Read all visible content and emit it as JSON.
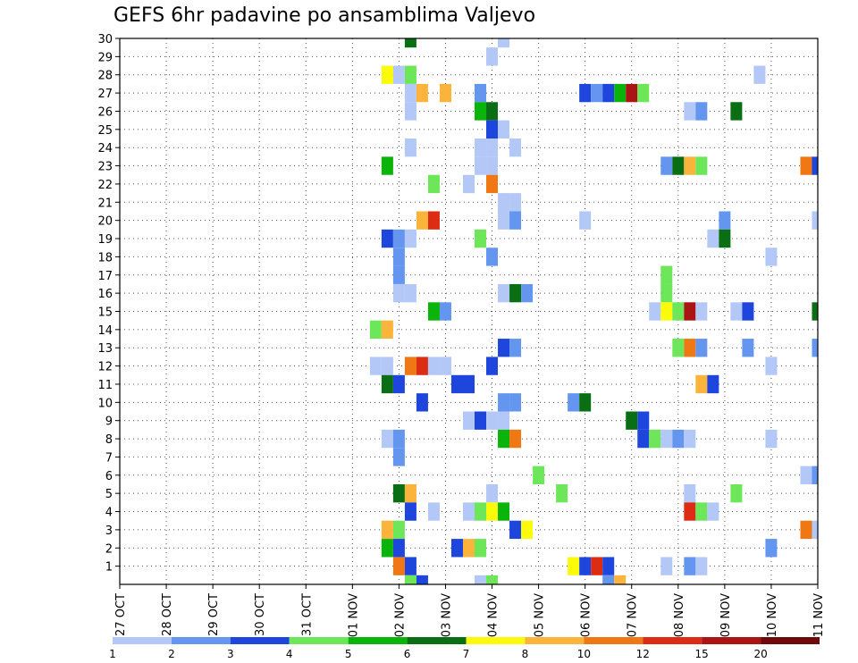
{
  "chart_data": {
    "type": "heatmap",
    "title": "GEFS 6hr padavine po ansamblima Valjevo",
    "x_tick_labels": [
      "27 OCT",
      "28 OCT",
      "29 OCT",
      "30 OCT",
      "31 OCT",
      "01 NOV",
      "02 NOV",
      "03 NOV",
      "04 NOV",
      "05 NOV",
      "06 NOV",
      "07 NOV",
      "08 NOV",
      "09 NOV",
      "10 NOV",
      "11 NOV"
    ],
    "y_tick_labels": [
      "1",
      "2",
      "3",
      "4",
      "5",
      "6",
      "7",
      "8",
      "9",
      "10",
      "11",
      "12",
      "13",
      "14",
      "15",
      "16",
      "17",
      "18",
      "19",
      "20",
      "21",
      "22",
      "23",
      "24",
      "25",
      "26",
      "27",
      "28",
      "29",
      "30"
    ],
    "ylim": [
      0,
      30
    ],
    "grid": true,
    "legend_position": "bottom",
    "legend_labels": [
      "1",
      "2",
      "3",
      "4",
      "5",
      "6",
      "7",
      "8",
      "10",
      "12",
      "15",
      "20"
    ],
    "legend_colors": [
      "#b4c8f8",
      "#6496f0",
      "#1e46dc",
      "#6ee65a",
      "#0ab40a",
      "#0a6e14",
      "#fafa0a",
      "#fab43c",
      "#f07814",
      "#dc2d14",
      "#aa1414",
      "#6e0a0a"
    ],
    "cells": [
      {
        "x": "02 NOV 06",
        "member": 30,
        "color": "#0a6e14"
      },
      {
        "x": "04 NOV 06",
        "member": 30,
        "color": "#b4c8f8"
      },
      {
        "x": "04 NOV 00",
        "member": 29,
        "color": "#b4c8f8"
      },
      {
        "x": "01 NOV 18",
        "member": 28,
        "color": "#fafa0a"
      },
      {
        "x": "02 NOV 00",
        "member": 28,
        "color": "#b4c8f8"
      },
      {
        "x": "02 NOV 06",
        "member": 28,
        "color": "#6ee65a"
      },
      {
        "x": "09 NOV 18",
        "member": 28,
        "color": "#b4c8f8"
      },
      {
        "x": "02 NOV 06",
        "member": 27,
        "color": "#b4c8f8"
      },
      {
        "x": "02 NOV 12",
        "member": 27,
        "color": "#fab43c"
      },
      {
        "x": "03 NOV 00",
        "member": 27,
        "color": "#fab43c"
      },
      {
        "x": "03 NOV 18",
        "member": 27,
        "color": "#6496f0"
      },
      {
        "x": "06 NOV 00",
        "member": 27,
        "color": "#1e46dc"
      },
      {
        "x": "06 NOV 06",
        "member": 27,
        "color": "#6496f0"
      },
      {
        "x": "06 NOV 12",
        "member": 27,
        "color": "#1e46dc"
      },
      {
        "x": "06 NOV 18",
        "member": 27,
        "color": "#0ab40a"
      },
      {
        "x": "07 NOV 00",
        "member": 27,
        "color": "#aa1414"
      },
      {
        "x": "07 NOV 06",
        "member": 27,
        "color": "#6ee65a"
      },
      {
        "x": "02 NOV 06",
        "member": 26,
        "color": "#b4c8f8"
      },
      {
        "x": "03 NOV 18",
        "member": 26,
        "color": "#0ab40a"
      },
      {
        "x": "04 NOV 00",
        "member": 26,
        "color": "#0a6e14"
      },
      {
        "x": "08 NOV 06",
        "member": 26,
        "color": "#b4c8f8"
      },
      {
        "x": "08 NOV 12",
        "member": 26,
        "color": "#6496f0"
      },
      {
        "x": "09 NOV 06",
        "member": 26,
        "color": "#0a6e14"
      },
      {
        "x": "04 NOV 00",
        "member": 25,
        "color": "#1e46dc"
      },
      {
        "x": "04 NOV 06",
        "member": 25,
        "color": "#b4c8f8"
      },
      {
        "x": "02 NOV 06",
        "member": 24,
        "color": "#b4c8f8"
      },
      {
        "x": "03 NOV 18",
        "member": 24,
        "color": "#b4c8f8"
      },
      {
        "x": "04 NOV 00",
        "member": 24,
        "color": "#b4c8f8"
      },
      {
        "x": "04 NOV 12",
        "member": 24,
        "color": "#b4c8f8"
      },
      {
        "x": "01 NOV 18",
        "member": 23,
        "color": "#0ab40a"
      },
      {
        "x": "03 NOV 18",
        "member": 23,
        "color": "#b4c8f8"
      },
      {
        "x": "04 NOV 00",
        "member": 23,
        "color": "#b4c8f8"
      },
      {
        "x": "07 NOV 18",
        "member": 23,
        "color": "#6496f0"
      },
      {
        "x": "08 NOV 00",
        "member": 23,
        "color": "#0a6e14"
      },
      {
        "x": "08 NOV 06",
        "member": 23,
        "color": "#fab43c"
      },
      {
        "x": "08 NOV 12",
        "member": 23,
        "color": "#6ee65a"
      },
      {
        "x": "10 NOV 18",
        "member": 23,
        "color": "#f07814"
      },
      {
        "x": "11 NOV 00",
        "member": 23,
        "color": "#1e46dc"
      },
      {
        "x": "02 NOV 18",
        "member": 22,
        "color": "#6ee65a"
      },
      {
        "x": "03 NOV 12",
        "member": 22,
        "color": "#b4c8f8"
      },
      {
        "x": "04 NOV 00",
        "member": 22,
        "color": "#f07814"
      },
      {
        "x": "04 NOV 06",
        "member": 21,
        "color": "#b4c8f8"
      },
      {
        "x": "04 NOV 12",
        "member": 21,
        "color": "#b4c8f8"
      },
      {
        "x": "02 NOV 12",
        "member": 20,
        "color": "#fab43c"
      },
      {
        "x": "02 NOV 18",
        "member": 20,
        "color": "#dc2d14"
      },
      {
        "x": "04 NOV 06",
        "member": 20,
        "color": "#b4c8f8"
      },
      {
        "x": "04 NOV 12",
        "member": 20,
        "color": "#6496f0"
      },
      {
        "x": "06 NOV 00",
        "member": 20,
        "color": "#b4c8f8"
      },
      {
        "x": "09 NOV 00",
        "member": 20,
        "color": "#6496f0"
      },
      {
        "x": "11 NOV 00",
        "member": 20,
        "color": "#b4c8f8"
      },
      {
        "x": "01 NOV 18",
        "member": 19,
        "color": "#1e46dc"
      },
      {
        "x": "02 NOV 00",
        "member": 19,
        "color": "#6496f0"
      },
      {
        "x": "02 NOV 06",
        "member": 19,
        "color": "#b4c8f8"
      },
      {
        "x": "03 NOV 18",
        "member": 19,
        "color": "#6ee65a"
      },
      {
        "x": "08 NOV 18",
        "member": 19,
        "color": "#b4c8f8"
      },
      {
        "x": "09 NOV 00",
        "member": 19,
        "color": "#0a6e14"
      },
      {
        "x": "02 NOV 00",
        "member": 18,
        "color": "#6496f0"
      },
      {
        "x": "04 NOV 00",
        "member": 18,
        "color": "#6496f0"
      },
      {
        "x": "10 NOV 00",
        "member": 18,
        "color": "#b4c8f8"
      },
      {
        "x": "02 NOV 00",
        "member": 17,
        "color": "#6496f0"
      },
      {
        "x": "07 NOV 18",
        "member": 17,
        "color": "#6ee65a"
      },
      {
        "x": "02 NOV 00",
        "member": 16,
        "color": "#b4c8f8"
      },
      {
        "x": "02 NOV 06",
        "member": 16,
        "color": "#b4c8f8"
      },
      {
        "x": "04 NOV 06",
        "member": 16,
        "color": "#b4c8f8"
      },
      {
        "x": "04 NOV 12",
        "member": 16,
        "color": "#0a6e14"
      },
      {
        "x": "04 NOV 18",
        "member": 16,
        "color": "#6496f0"
      },
      {
        "x": "07 NOV 18",
        "member": 16,
        "color": "#6ee65a"
      },
      {
        "x": "02 NOV 18",
        "member": 15,
        "color": "#0ab40a"
      },
      {
        "x": "03 NOV 00",
        "member": 15,
        "color": "#6496f0"
      },
      {
        "x": "07 NOV 12",
        "member": 15,
        "color": "#b4c8f8"
      },
      {
        "x": "07 NOV 18",
        "member": 15,
        "color": "#fafa0a"
      },
      {
        "x": "08 NOV 00",
        "member": 15,
        "color": "#6ee65a"
      },
      {
        "x": "08 NOV 06",
        "member": 15,
        "color": "#aa1414"
      },
      {
        "x": "08 NOV 12",
        "member": 15,
        "color": "#b4c8f8"
      },
      {
        "x": "09 NOV 06",
        "member": 15,
        "color": "#b4c8f8"
      },
      {
        "x": "09 NOV 12",
        "member": 15,
        "color": "#1e46dc"
      },
      {
        "x": "11 NOV 00",
        "member": 15,
        "color": "#0a6e14"
      },
      {
        "x": "01 NOV 12",
        "member": 14,
        "color": "#6ee65a"
      },
      {
        "x": "01 NOV 18",
        "member": 14,
        "color": "#fab43c"
      },
      {
        "x": "04 NOV 06",
        "member": 13,
        "color": "#1e46dc"
      },
      {
        "x": "04 NOV 12",
        "member": 13,
        "color": "#6496f0"
      },
      {
        "x": "08 NOV 00",
        "member": 13,
        "color": "#6ee65a"
      },
      {
        "x": "08 NOV 06",
        "member": 13,
        "color": "#f07814"
      },
      {
        "x": "08 NOV 12",
        "member": 13,
        "color": "#6496f0"
      },
      {
        "x": "09 NOV 12",
        "member": 13,
        "color": "#6496f0"
      },
      {
        "x": "11 NOV 00",
        "member": 13,
        "color": "#6496f0"
      },
      {
        "x": "01 NOV 12",
        "member": 12,
        "color": "#b4c8f8"
      },
      {
        "x": "01 NOV 18",
        "member": 12,
        "color": "#b4c8f8"
      },
      {
        "x": "02 NOV 06",
        "member": 12,
        "color": "#f07814"
      },
      {
        "x": "02 NOV 12",
        "member": 12,
        "color": "#dc2d14"
      },
      {
        "x": "02 NOV 18",
        "member": 12,
        "color": "#b4c8f8"
      },
      {
        "x": "03 NOV 00",
        "member": 12,
        "color": "#b4c8f8"
      },
      {
        "x": "04 NOV 00",
        "member": 12,
        "color": "#1e46dc"
      },
      {
        "x": "10 NOV 00",
        "member": 12,
        "color": "#b4c8f8"
      },
      {
        "x": "01 NOV 18",
        "member": 11,
        "color": "#0a6e14"
      },
      {
        "x": "02 NOV 00",
        "member": 11,
        "color": "#1e46dc"
      },
      {
        "x": "03 NOV 06",
        "member": 11,
        "color": "#1e46dc"
      },
      {
        "x": "03 NOV 12",
        "member": 11,
        "color": "#1e46dc"
      },
      {
        "x": "08 NOV 12",
        "member": 11,
        "color": "#fab43c"
      },
      {
        "x": "08 NOV 18",
        "member": 11,
        "color": "#1e46dc"
      },
      {
        "x": "02 NOV 12",
        "member": 10,
        "color": "#1e46dc"
      },
      {
        "x": "04 NOV 06",
        "member": 10,
        "color": "#6496f0"
      },
      {
        "x": "04 NOV 12",
        "member": 10,
        "color": "#6496f0"
      },
      {
        "x": "05 NOV 18",
        "member": 10,
        "color": "#6496f0"
      },
      {
        "x": "06 NOV 00",
        "member": 10,
        "color": "#0a6e14"
      },
      {
        "x": "03 NOV 12",
        "member": 9,
        "color": "#b4c8f8"
      },
      {
        "x": "03 NOV 18",
        "member": 9,
        "color": "#1e46dc"
      },
      {
        "x": "04 NOV 00",
        "member": 9,
        "color": "#b4c8f8"
      },
      {
        "x": "04 NOV 06",
        "member": 9,
        "color": "#b4c8f8"
      },
      {
        "x": "07 NOV 00",
        "member": 9,
        "color": "#0a6e14"
      },
      {
        "x": "07 NOV 06",
        "member": 9,
        "color": "#1e46dc"
      },
      {
        "x": "01 NOV 18",
        "member": 8,
        "color": "#b4c8f8"
      },
      {
        "x": "02 NOV 00",
        "member": 8,
        "color": "#6496f0"
      },
      {
        "x": "04 NOV 06",
        "member": 8,
        "color": "#0ab40a"
      },
      {
        "x": "04 NOV 12",
        "member": 8,
        "color": "#f07814"
      },
      {
        "x": "07 NOV 06",
        "member": 8,
        "color": "#1e46dc"
      },
      {
        "x": "07 NOV 12",
        "member": 8,
        "color": "#6ee65a"
      },
      {
        "x": "07 NOV 18",
        "member": 8,
        "color": "#b4c8f8"
      },
      {
        "x": "08 NOV 00",
        "member": 8,
        "color": "#6496f0"
      },
      {
        "x": "08 NOV 06",
        "member": 8,
        "color": "#b4c8f8"
      },
      {
        "x": "10 NOV 00",
        "member": 8,
        "color": "#b4c8f8"
      },
      {
        "x": "02 NOV 00",
        "member": 7,
        "color": "#6496f0"
      },
      {
        "x": "05 NOV 00",
        "member": 6,
        "color": "#6ee65a"
      },
      {
        "x": "10 NOV 18",
        "member": 6,
        "color": "#b4c8f8"
      },
      {
        "x": "11 NOV 00",
        "member": 6,
        "color": "#6496f0"
      },
      {
        "x": "02 NOV 00",
        "member": 5,
        "color": "#0a6e14"
      },
      {
        "x": "02 NOV 06",
        "member": 5,
        "color": "#fab43c"
      },
      {
        "x": "04 NOV 00",
        "member": 5,
        "color": "#b4c8f8"
      },
      {
        "x": "05 NOV 12",
        "member": 5,
        "color": "#6ee65a"
      },
      {
        "x": "08 NOV 06",
        "member": 5,
        "color": "#b4c8f8"
      },
      {
        "x": "09 NOV 06",
        "member": 5,
        "color": "#6ee65a"
      },
      {
        "x": "02 NOV 06",
        "member": 4,
        "color": "#1e46dc"
      },
      {
        "x": "02 NOV 18",
        "member": 4,
        "color": "#b4c8f8"
      },
      {
        "x": "03 NOV 12",
        "member": 4,
        "color": "#b4c8f8"
      },
      {
        "x": "03 NOV 18",
        "member": 4,
        "color": "#6ee65a"
      },
      {
        "x": "04 NOV 00",
        "member": 4,
        "color": "#fafa0a"
      },
      {
        "x": "04 NOV 06",
        "member": 4,
        "color": "#0ab40a"
      },
      {
        "x": "08 NOV 06",
        "member": 4,
        "color": "#dc2d14"
      },
      {
        "x": "08 NOV 12",
        "member": 4,
        "color": "#6ee65a"
      },
      {
        "x": "08 NOV 18",
        "member": 4,
        "color": "#b4c8f8"
      },
      {
        "x": "01 NOV 18",
        "member": 3,
        "color": "#fab43c"
      },
      {
        "x": "02 NOV 00",
        "member": 3,
        "color": "#6ee65a"
      },
      {
        "x": "04 NOV 12",
        "member": 3,
        "color": "#1e46dc"
      },
      {
        "x": "04 NOV 18",
        "member": 3,
        "color": "#fafa0a"
      },
      {
        "x": "10 NOV 18",
        "member": 3,
        "color": "#f07814"
      },
      {
        "x": "11 NOV 00",
        "member": 3,
        "color": "#b4c8f8"
      },
      {
        "x": "01 NOV 18",
        "member": 2,
        "color": "#0ab40a"
      },
      {
        "x": "02 NOV 00",
        "member": 2,
        "color": "#1e46dc"
      },
      {
        "x": "03 NOV 06",
        "member": 2,
        "color": "#1e46dc"
      },
      {
        "x": "03 NOV 12",
        "member": 2,
        "color": "#fab43c"
      },
      {
        "x": "03 NOV 18",
        "member": 2,
        "color": "#6ee65a"
      },
      {
        "x": "10 NOV 00",
        "member": 2,
        "color": "#6496f0"
      },
      {
        "x": "02 NOV 00",
        "member": 1,
        "color": "#f07814"
      },
      {
        "x": "02 NOV 06",
        "member": 1,
        "color": "#1e46dc"
      },
      {
        "x": "05 NOV 18",
        "member": 1,
        "color": "#fafa0a"
      },
      {
        "x": "06 NOV 00",
        "member": 1,
        "color": "#1e46dc"
      },
      {
        "x": "06 NOV 06",
        "member": 1,
        "color": "#dc2d14"
      },
      {
        "x": "06 NOV 12",
        "member": 1,
        "color": "#1e46dc"
      },
      {
        "x": "07 NOV 18",
        "member": 1,
        "color": "#b4c8f8"
      },
      {
        "x": "08 NOV 06",
        "member": 1,
        "color": "#6496f0"
      },
      {
        "x": "08 NOV 12",
        "member": 1,
        "color": "#b4c8f8"
      },
      {
        "x": "02 NOV 06",
        "member": 0,
        "color": "#6ee65a"
      },
      {
        "x": "02 NOV 12",
        "member": 0,
        "color": "#1e46dc"
      },
      {
        "x": "03 NOV 18",
        "member": 0,
        "color": "#b4c8f8"
      },
      {
        "x": "04 NOV 00",
        "member": 0,
        "color": "#6ee65a"
      },
      {
        "x": "06 NOV 12",
        "member": 0,
        "color": "#6496f0"
      },
      {
        "x": "06 NOV 18",
        "member": 0,
        "color": "#fab43c"
      }
    ]
  }
}
